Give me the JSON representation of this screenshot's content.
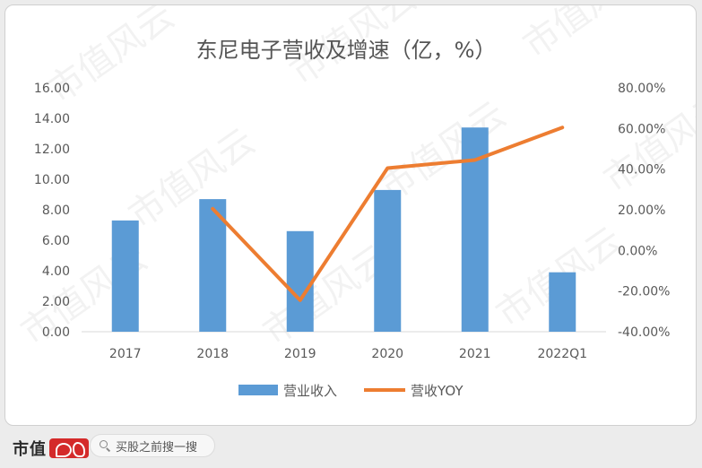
{
  "chart_data": {
    "type": "bar+line",
    "title": "东尼电子营收及增速（亿，%）",
    "categories": [
      "2017",
      "2018",
      "2019",
      "2020",
      "2021",
      "2022Q1"
    ],
    "series": [
      {
        "name": "营业收入",
        "type": "bar",
        "axis": "left",
        "color": "#5b9bd5",
        "values": [
          7.3,
          8.7,
          6.6,
          9.3,
          13.4,
          3.9
        ]
      },
      {
        "name": "营收YOY",
        "type": "line",
        "axis": "right",
        "color": "#ed7d31",
        "values": [
          null,
          20.5,
          -24.5,
          40.5,
          44.5,
          60.5
        ]
      }
    ],
    "left_axis": {
      "ylim": [
        0,
        16
      ],
      "ticks": [
        "0.00",
        "2.00",
        "4.00",
        "6.00",
        "8.00",
        "10.00",
        "12.00",
        "14.00",
        "16.00"
      ]
    },
    "right_axis": {
      "ylim": [
        -40,
        80
      ],
      "ticks": [
        "-40.00%",
        "-20.00%",
        "0.00%",
        "20.00%",
        "40.00%",
        "60.00%",
        "80.00%"
      ]
    },
    "grid": false,
    "legend_position": "bottom",
    "legend": [
      "营业收入",
      "营收YOY"
    ]
  },
  "watermark": "市值风云",
  "footer": {
    "brand": "市值",
    "search_placeholder": "买股之前搜一搜"
  }
}
